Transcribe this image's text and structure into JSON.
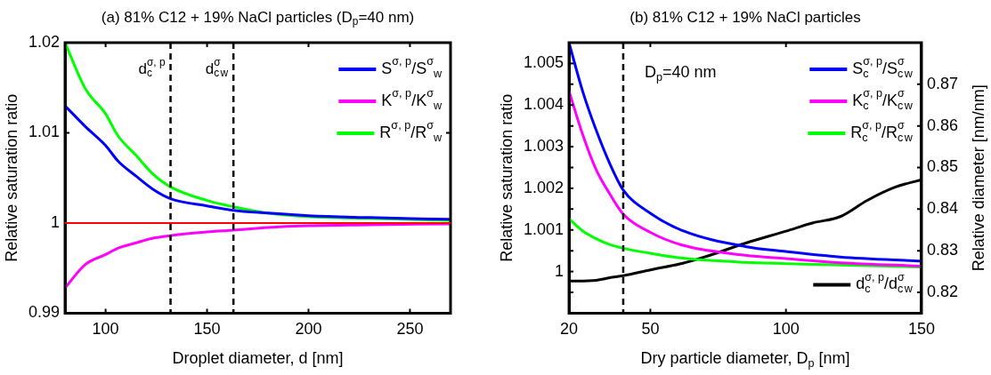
{
  "chart_data": [
    {
      "type": "line",
      "title": "(a) 81% C12 + 19% NaCl particles (D$_{p}$=40 nm)",
      "xlabel": "Droplet diameter, d [nm]",
      "ylabel": "Relative saturation ratio",
      "xlim": [
        80,
        270
      ],
      "xticks": [
        100,
        150,
        200,
        250
      ],
      "ylim": [
        0.99,
        1.02
      ],
      "yticks": [
        0.99,
        1,
        1.01,
        1.02
      ],
      "legend": "top right",
      "line_style": "solid",
      "marker": "none",
      "ref_lines": [
        {
          "axis": "x",
          "value": 132,
          "label": "d$_{c}$$^{σ, p}$",
          "color": "#000000",
          "line_style": "dashed"
        },
        {
          "axis": "x",
          "value": 163,
          "label": "d$_{c}$$^{σ}$$_{w}$",
          "color": "#000000",
          "line_style": "dashed"
        },
        {
          "axis": "y",
          "value": 1,
          "color": "#ff0000",
          "line_style": "solid"
        }
      ],
      "series": [
        {
          "name": "S$^{σ, p}$/S$^{σ}$$_{w}$",
          "color": "#0000ff",
          "x": [
            80,
            90,
            100,
            106,
            115,
            123,
            132,
            150,
            163,
            180,
            200,
            230,
            270
          ],
          "values": [
            1.013,
            1.0107,
            1.0086,
            1.0069,
            1.0052,
            1.0038,
            1.0027,
            1.0019,
            1.0014,
            1.0011,
            1.0008,
            1.0006,
            1.0004
          ]
        },
        {
          "name": "K$^{σ, p}$/K$^{σ}$$_{w}$",
          "color": "#ff00ff",
          "x": [
            80,
            90,
            100,
            106,
            115,
            123,
            132,
            150,
            163,
            180,
            200,
            230,
            270
          ],
          "values": [
            0.9928,
            0.9954,
            0.9965,
            0.9972,
            0.9978,
            0.9983,
            0.9986,
            0.999,
            0.9992,
            0.9995,
            0.9997,
            0.9998,
            0.9999
          ]
        },
        {
          "name": "R$^{σ, p}$/R$^{σ}$$_{w}$",
          "color": "#00ff00",
          "x": [
            80,
            90,
            100,
            106,
            115,
            123,
            132,
            150,
            163,
            180,
            200,
            230,
            270
          ],
          "values": [
            1.02,
            1.0149,
            1.0121,
            1.0097,
            1.0075,
            1.0055,
            1.004,
            1.0025,
            1.0018,
            1.0011,
            1.0007,
            1.0005,
            1.0003
          ]
        }
      ]
    },
    {
      "type": "line",
      "title": "(b) 81% C12 + 19% NaCl particles",
      "xlabel": "Dry particle diameter, D$_{p}$ [nm]",
      "ylabel": "Relative saturation ratio",
      "y2label": "Relative diameter [nm/nm]",
      "annotations": [
        "D$_{p}$=40 nm"
      ],
      "xlim": [
        20,
        150
      ],
      "xticks": [
        20,
        50,
        100,
        150
      ],
      "ylim": [
        0.999,
        1.0055
      ],
      "yticks": [
        1,
        1.001,
        1.002,
        1.003,
        1.004,
        1.005
      ],
      "y2lim": [
        0.815,
        0.88
      ],
      "y2ticks": [
        0.82,
        0.83,
        0.84,
        0.85,
        0.86,
        0.87
      ],
      "legend": "top right",
      "line_style": "solid",
      "marker": "none",
      "ref_lines": [
        {
          "axis": "x",
          "value": 40,
          "color": "#000000",
          "line_style": "dashed"
        }
      ],
      "series": [
        {
          "name": "S$_{c}$$^{σ, p}$/S$_{c}$$^{σ}$$_{w}$",
          "color": "#0000ff",
          "x": [
            20,
            25,
            30,
            35,
            40,
            50,
            62,
            85,
            100,
            120,
            150
          ],
          "values": [
            1.0055,
            1.00434,
            1.0034,
            1.0026,
            1.00196,
            1.0014,
            1.00098,
            1.0006,
            1.00048,
            1.00035,
            1.00025
          ]
        },
        {
          "name": "K$_{c}$$^{σ, p}$/K$_{c}$$^{σ}$$_{w}$",
          "color": "#ff00ff",
          "x": [
            20,
            25,
            30,
            35,
            40,
            50,
            62,
            85,
            100,
            120,
            150
          ],
          "values": [
            1.00434,
            1.0033,
            1.00245,
            1.00187,
            1.00138,
            1.00094,
            1.00063,
            1.00039,
            1.00031,
            1.00021,
            1.00013
          ]
        },
        {
          "name": "R$_{c}$$^{σ, p}$/R$_{c}$$^{σ}$$_{w}$",
          "color": "#00ff00",
          "x": [
            20,
            25,
            30,
            35,
            40,
            50,
            62,
            85,
            100,
            150
          ],
          "values": [
            1.00127,
            1.00098,
            1.00079,
            1.00065,
            1.00056,
            1.00044,
            1.00032,
            1.00022,
            1.00019,
            1.00011
          ]
        },
        {
          "name": "d$_{c}$$^{σ, p}$/d$_{c}$$^{σ}$$_{w}$",
          "color": "#000000",
          "axis": "y2",
          "x": [
            20,
            30,
            35,
            40,
            50,
            62,
            70,
            85,
            100,
            110,
            120,
            130,
            140,
            150
          ],
          "values": [
            0.8227,
            0.8229,
            0.8235,
            0.824,
            0.8254,
            0.827,
            0.8285,
            0.8318,
            0.8347,
            0.8367,
            0.8382,
            0.8421,
            0.8452,
            0.8471
          ]
        }
      ]
    }
  ]
}
